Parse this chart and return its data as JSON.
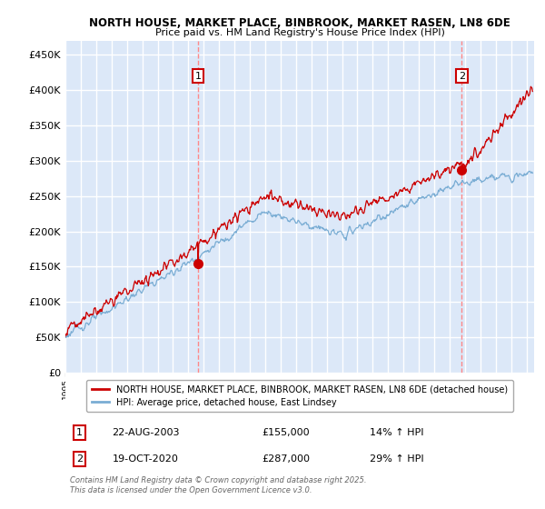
{
  "title1": "NORTH HOUSE, MARKET PLACE, BINBROOK, MARKET RASEN, LN8 6DE",
  "title2": "Price paid vs. HM Land Registry's House Price Index (HPI)",
  "ylim": [
    0,
    470000
  ],
  "yticks": [
    0,
    50000,
    100000,
    150000,
    200000,
    250000,
    300000,
    350000,
    400000,
    450000
  ],
  "ytick_labels": [
    "£0",
    "£50K",
    "£100K",
    "£150K",
    "£200K",
    "£250K",
    "£300K",
    "£350K",
    "£400K",
    "£450K"
  ],
  "fig_bg_color": "#ffffff",
  "plot_bg_color": "#dce8f8",
  "grid_color": "#ffffff",
  "red_line_color": "#cc0000",
  "blue_line_color": "#7aadd4",
  "vline_color": "#ff8888",
  "annotation_box_edge": "#cc0000",
  "legend_label_red": "NORTH HOUSE, MARKET PLACE, BINBROOK, MARKET RASEN, LN8 6DE (detached house)",
  "legend_label_blue": "HPI: Average price, detached house, East Lindsey",
  "transaction1_date": "22-AUG-2003",
  "transaction1_date_num": 2003.64,
  "transaction1_price": 155000,
  "transaction1_price_str": "£155,000",
  "transaction1_pct": "14% ↑ HPI",
  "transaction2_date": "19-OCT-2020",
  "transaction2_date_num": 2020.8,
  "transaction2_price": 287000,
  "transaction2_price_str": "£287,000",
  "transaction2_pct": "29% ↑ HPI",
  "copyright": "Contains HM Land Registry data © Crown copyright and database right 2025.\nThis data is licensed under the Open Government Licence v3.0."
}
